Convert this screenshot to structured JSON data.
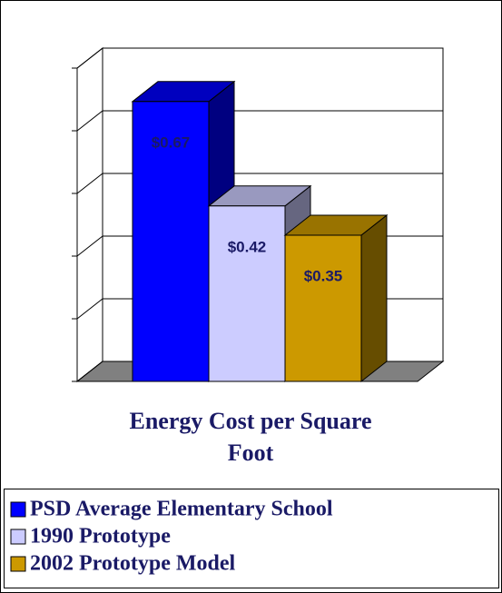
{
  "chart_data": {
    "type": "bar3d",
    "title_lines": [
      "Energy Cost per Square",
      "Foot"
    ],
    "categories": [
      "PSD Average Elementary School",
      "1990 Prototype",
      "2002 Prototype Model"
    ],
    "values": [
      0.67,
      0.42,
      0.35
    ],
    "value_labels": [
      "$0.67",
      "$0.42",
      "$0.35"
    ],
    "colors": [
      "#0000ff",
      "#ccccff",
      "#cc9900"
    ],
    "ylim": [
      0,
      0.75
    ],
    "yticks": [
      0,
      0.15,
      0.3,
      0.45,
      0.6,
      0.75
    ],
    "grid": true
  }
}
